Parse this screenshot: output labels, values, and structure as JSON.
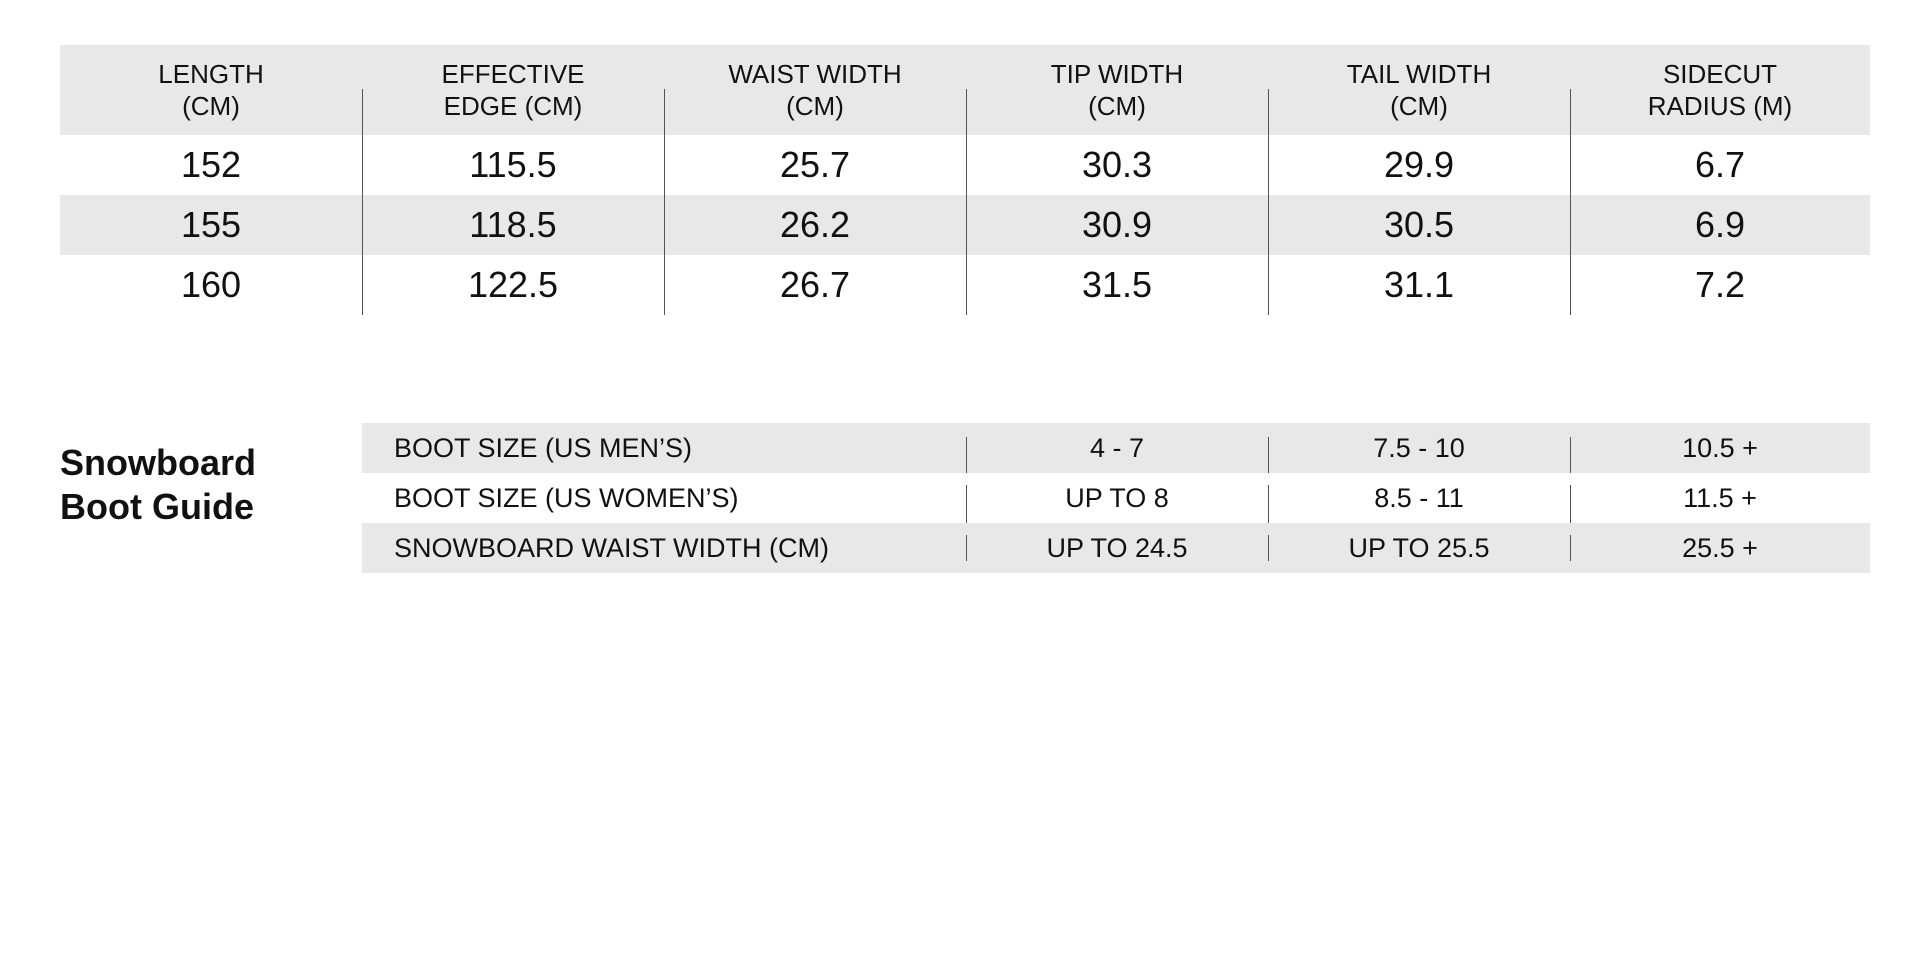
{
  "spec_table": {
    "headers": [
      [
        "LENGTH",
        "(CM)"
      ],
      [
        "EFFECTIVE",
        "EDGE (CM)"
      ],
      [
        "WAIST WIDTH",
        "(CM)"
      ],
      [
        "TIP WIDTH",
        "(CM)"
      ],
      [
        "TAIL WIDTH",
        "(CM)"
      ],
      [
        "SIDECUT",
        "RADIUS (M)"
      ]
    ],
    "rows": [
      [
        "152",
        "115.5",
        "25.7",
        "30.3",
        "29.9",
        "6.7"
      ],
      [
        "155",
        "118.5",
        "26.2",
        "30.9",
        "30.5",
        "6.9"
      ],
      [
        "160",
        "122.5",
        "26.7",
        "31.5",
        "31.1",
        "7.2"
      ]
    ]
  },
  "boot_guide": {
    "heading": [
      "Snowboard",
      "Boot Guide"
    ],
    "rows": [
      {
        "label": "BOOT SIZE (US MEN’S)",
        "values": [
          "4 - 7",
          "7.5 - 10",
          "10.5 +"
        ]
      },
      {
        "label": "BOOT SIZE (US WOMEN’S)",
        "values": [
          "UP TO 8",
          "8.5 - 11",
          "11.5 +"
        ]
      },
      {
        "label": "SNOWBOARD WAIST WIDTH (CM)",
        "values": [
          "UP TO 24.5",
          "UP TO 25.5",
          "25.5 +"
        ]
      }
    ]
  }
}
